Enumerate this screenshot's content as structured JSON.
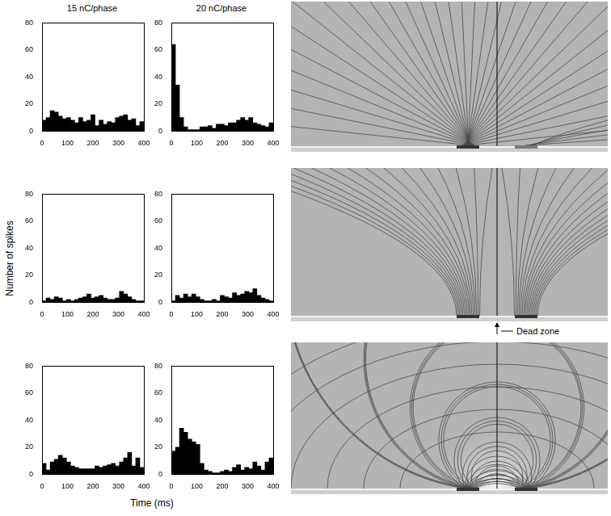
{
  "chart_data": [
    {
      "type": "histogram",
      "bins": [
        0,
        16,
        32,
        48,
        64,
        80,
        96,
        112,
        128,
        144,
        160,
        176,
        192,
        208,
        224,
        240,
        256,
        272,
        288,
        304,
        320,
        336,
        352,
        368,
        384,
        400
      ],
      "values": [
        8,
        10,
        15,
        14,
        11,
        9,
        10,
        8,
        6,
        10,
        7,
        8,
        12,
        4,
        8,
        5,
        7,
        6,
        10,
        11,
        12,
        8,
        9,
        4,
        7
      ],
      "color": "#000000",
      "xlim": [
        0,
        400
      ],
      "xticks": [
        0,
        100,
        200,
        300,
        400
      ],
      "ylim": [
        0,
        80
      ],
      "yticks": [
        0,
        20,
        40,
        60,
        80
      ],
      "grid": false
    },
    {
      "type": "histogram",
      "bins": [
        0,
        16,
        32,
        48,
        64,
        80,
        96,
        112,
        128,
        144,
        160,
        176,
        192,
        208,
        224,
        240,
        256,
        272,
        288,
        304,
        320,
        336,
        352,
        368,
        384,
        400
      ],
      "values": [
        64,
        34,
        10,
        3,
        1,
        1,
        1,
        3,
        3,
        4,
        2,
        5,
        5,
        4,
        6,
        6,
        8,
        10,
        8,
        10,
        6,
        5,
        4,
        3,
        6
      ],
      "color": "#000000",
      "xlim": [
        0,
        400
      ],
      "xticks": [
        0,
        100,
        200,
        300,
        400
      ],
      "ylim": [
        0,
        80
      ],
      "yticks": [
        0,
        20,
        40,
        60,
        80
      ],
      "grid": false
    },
    {
      "type": "histogram",
      "bins": [
        0,
        16,
        32,
        48,
        64,
        80,
        96,
        112,
        128,
        144,
        160,
        176,
        192,
        208,
        224,
        240,
        256,
        272,
        288,
        304,
        320,
        336,
        352,
        368,
        384,
        400
      ],
      "values": [
        1,
        3,
        2,
        4,
        3,
        1,
        2,
        1,
        2,
        3,
        4,
        6,
        3,
        4,
        5,
        3,
        2,
        2,
        3,
        8,
        6,
        4,
        2,
        1,
        1
      ],
      "color": "#000000",
      "xlim": [
        0,
        400
      ],
      "xticks": [
        0,
        100,
        200,
        300,
        400
      ],
      "ylim": [
        0,
        80
      ],
      "yticks": [
        0,
        20,
        40,
        60,
        80
      ],
      "grid": false
    },
    {
      "type": "histogram",
      "bins": [
        0,
        16,
        32,
        48,
        64,
        80,
        96,
        112,
        128,
        144,
        160,
        176,
        192,
        208,
        224,
        240,
        256,
        272,
        288,
        304,
        320,
        336,
        352,
        368,
        384,
        400
      ],
      "values": [
        1,
        5,
        3,
        6,
        4,
        6,
        4,
        2,
        1,
        1,
        2,
        1,
        5,
        4,
        3,
        7,
        5,
        6,
        8,
        7,
        10,
        5,
        3,
        2,
        1
      ],
      "color": "#000000",
      "xlim": [
        0,
        400
      ],
      "xticks": [
        0,
        100,
        200,
        300,
        400
      ],
      "ylim": [
        0,
        80
      ],
      "yticks": [
        0,
        20,
        40,
        60,
        80
      ],
      "grid": false
    },
    {
      "type": "histogram",
      "bins": [
        0,
        16,
        32,
        48,
        64,
        80,
        96,
        112,
        128,
        144,
        160,
        176,
        192,
        208,
        224,
        240,
        256,
        272,
        288,
        304,
        320,
        336,
        352,
        368,
        384,
        400
      ],
      "values": [
        8,
        3,
        9,
        11,
        14,
        12,
        9,
        6,
        5,
        4,
        4,
        4,
        4,
        6,
        5,
        6,
        7,
        8,
        6,
        9,
        12,
        16,
        6,
        12,
        5
      ],
      "color": "#000000",
      "xlim": [
        0,
        400
      ],
      "xticks": [
        0,
        100,
        200,
        300,
        400
      ],
      "ylim": [
        0,
        80
      ],
      "yticks": [
        0,
        20,
        40,
        60,
        80
      ],
      "grid": false
    },
    {
      "type": "histogram",
      "bins": [
        0,
        16,
        32,
        48,
        64,
        80,
        96,
        112,
        128,
        144,
        160,
        176,
        192,
        208,
        224,
        240,
        256,
        272,
        288,
        304,
        320,
        336,
        352,
        368,
        384,
        400
      ],
      "values": [
        17,
        20,
        34,
        31,
        26,
        24,
        22,
        8,
        3,
        2,
        1,
        1,
        2,
        3,
        2,
        5,
        7,
        3,
        5,
        4,
        9,
        6,
        3,
        9,
        12
      ],
      "color": "#000000",
      "xlim": [
        0,
        400
      ],
      "xticks": [
        0,
        100,
        200,
        300,
        400
      ],
      "ylim": [
        0,
        80
      ],
      "yticks": [
        0,
        20,
        40,
        60,
        80
      ],
      "grid": false
    }
  ],
  "figure": {
    "column_titles": [
      "15 nC/phase",
      "20 nC/phase"
    ],
    "y_label": "Number of spikes",
    "x_label": "Time (ms)",
    "annotation": "Dead zone"
  }
}
